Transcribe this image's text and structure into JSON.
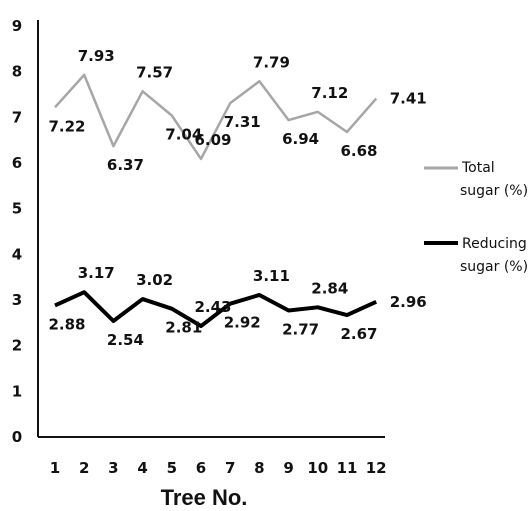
{
  "chart_data": {
    "type": "line",
    "x": [
      1,
      2,
      3,
      4,
      5,
      6,
      7,
      8,
      9,
      10,
      11,
      12
    ],
    "xlabel": "Tree No.",
    "ylabel": "",
    "ylim": [
      0,
      9
    ],
    "yticks": [
      0,
      1,
      2,
      3,
      4,
      5,
      6,
      7,
      8,
      9
    ],
    "grid": false,
    "legend_position": "right",
    "series": [
      {
        "name_lines": [
          "Total",
          "sugar (%)"
        ],
        "color": "#a6a6a6",
        "values": [
          7.22,
          7.93,
          6.37,
          7.57,
          7.04,
          6.09,
          7.31,
          7.79,
          6.94,
          7.12,
          6.68,
          7.41
        ],
        "labels": [
          "7.22",
          "7.93",
          "6.37",
          "7.57",
          "7.04",
          "6.09",
          "7.31",
          "7.79",
          "6.94",
          "7.12",
          "6.68",
          "7.41"
        ]
      },
      {
        "name_lines": [
          "Reducing",
          "sugar (%)"
        ],
        "color": "#000000",
        "values": [
          2.88,
          3.17,
          2.54,
          3.02,
          2.81,
          2.43,
          2.92,
          3.11,
          2.77,
          2.84,
          2.67,
          2.96
        ],
        "labels": [
          "2.88",
          "3.17",
          "2.54",
          "3.02",
          "2.81",
          "2.43",
          "2.92",
          "3.11",
          "2.77",
          "2.84",
          "2.67",
          "2.96"
        ]
      }
    ]
  }
}
